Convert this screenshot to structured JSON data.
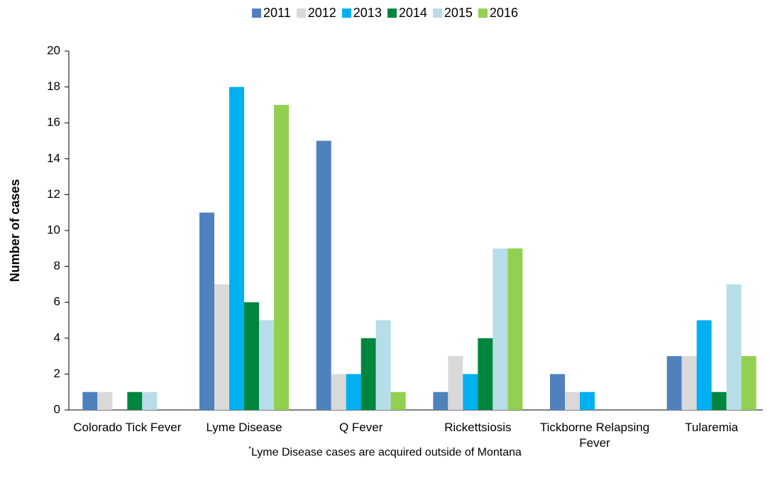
{
  "chart_data": {
    "type": "bar",
    "y_label": "Number of cases",
    "categories": [
      "Colorado Tick Fever",
      "Lyme Disease",
      "Q Fever",
      "Rickettsiosis",
      "Tickborne Relapsing Fever",
      "Tularemia"
    ],
    "series": [
      {
        "name": "2011",
        "color": "#4f81bd",
        "values": [
          1,
          11,
          15,
          1,
          2,
          3
        ]
      },
      {
        "name": "2012",
        "color": "#d9d9d9",
        "values": [
          1,
          7,
          2,
          3,
          1,
          3
        ]
      },
      {
        "name": "2013",
        "color": "#00b0f0",
        "values": [
          0,
          18,
          2,
          2,
          1,
          5
        ]
      },
      {
        "name": "2014",
        "color": "#00853e",
        "values": [
          1,
          6,
          4,
          4,
          0,
          1
        ]
      },
      {
        "name": "2015",
        "color": "#b7dee8",
        "values": [
          1,
          5,
          5,
          9,
          0,
          7
        ]
      },
      {
        "name": "2016",
        "color": "#92d050",
        "values": [
          0,
          17,
          1,
          9,
          0,
          3
        ]
      }
    ],
    "ylim": [
      0,
      20
    ],
    "yticks": [
      0,
      2,
      4,
      6,
      8,
      10,
      12,
      14,
      16,
      18,
      20
    ],
    "grid": false,
    "legend": "top",
    "footnote_marker": "*",
    "footnote": "Lyme Disease cases are acquired outside of Montana"
  }
}
